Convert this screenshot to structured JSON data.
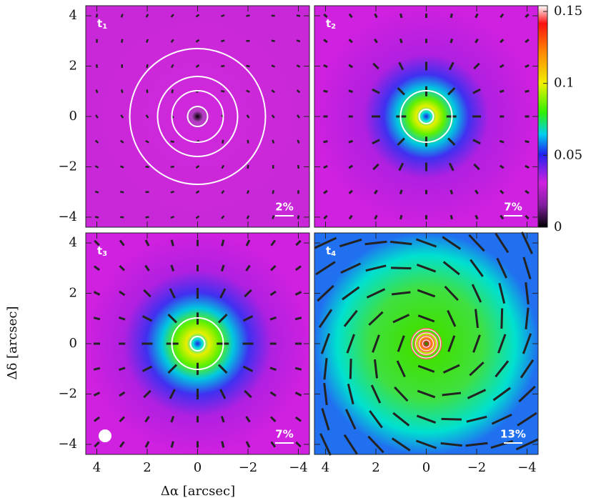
{
  "chart_data": {
    "type": "polarization-map",
    "xlabel": "Δα [arcsec]",
    "ylabel": "Δδ [arcsec]",
    "xlim": [
      4.44,
      -4.44
    ],
    "ylim": [
      -4.4,
      4.4
    ],
    "xticks": [
      4,
      2,
      0,
      {
        "value": -2,
        "label": "−2"
      },
      {
        "value": -4,
        "label": "−4"
      }
    ],
    "yticks": [
      {
        "value": -4,
        "label": "−4"
      },
      {
        "value": -2,
        "label": "−2"
      },
      0,
      2,
      4
    ],
    "panels": [
      {
        "label": "t",
        "label_sub": "1",
        "scale_label": "2%"
      },
      {
        "label": "t",
        "label_sub": "2",
        "scale_label": "7%"
      },
      {
        "label": "t",
        "label_sub": "3",
        "scale_label": "7%"
      },
      {
        "label": "t",
        "label_sub": "4",
        "scale_label": "13%"
      }
    ],
    "colorbar": {
      "lim": [
        0,
        0.154
      ],
      "ticks": [
        0,
        0.05,
        0.1,
        0.15
      ]
    }
  }
}
